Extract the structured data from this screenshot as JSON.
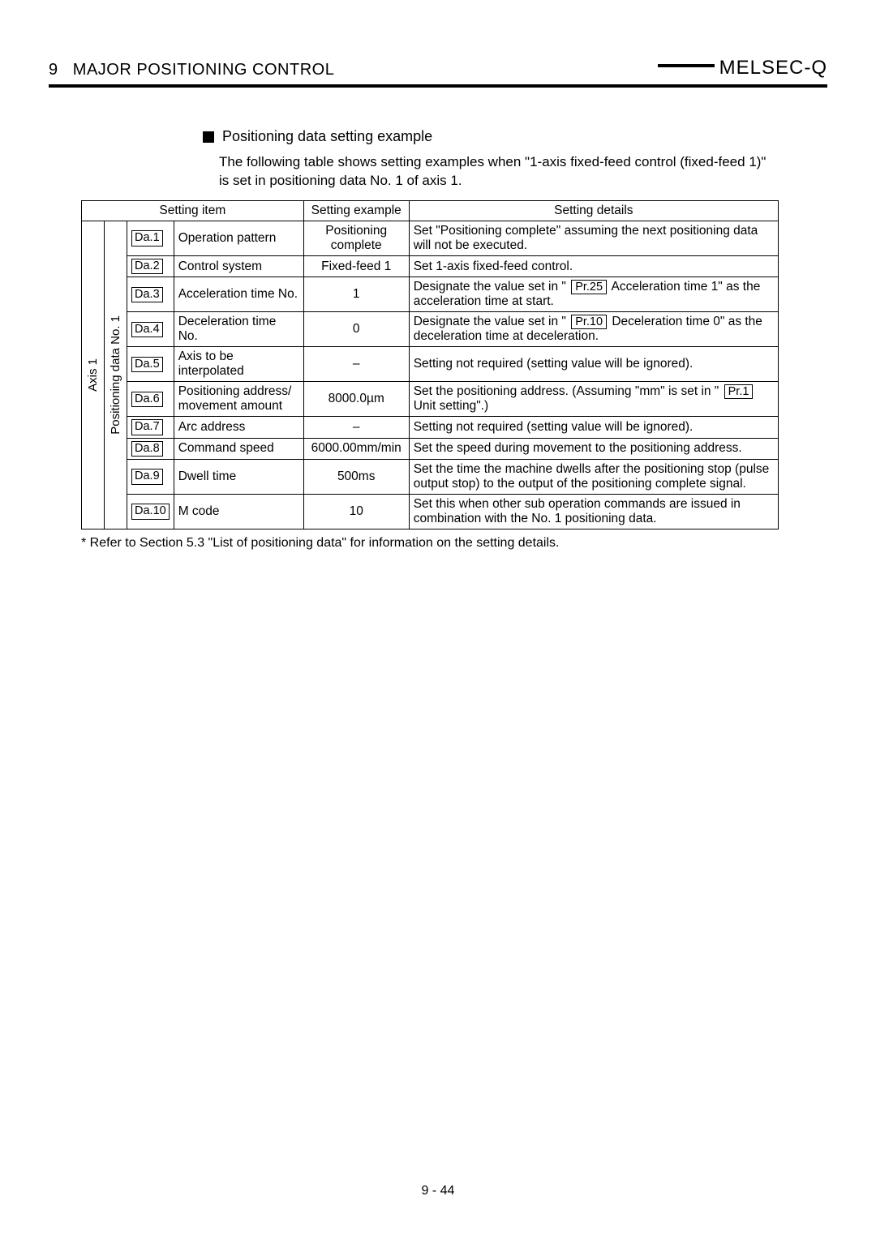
{
  "header": {
    "chapter": "9   MAJOR POSITIONING CONTROL",
    "brand": "MELSEC-Q"
  },
  "section": {
    "title": "Positioning data setting example",
    "intro": "The following table shows setting examples when \"1-axis fixed-feed control (fixed-feed 1)\" is set in positioning data No. 1 of axis 1."
  },
  "table": {
    "headers": {
      "setting_item": "Setting item",
      "setting_example": "Setting example",
      "setting_details": "Setting details"
    },
    "vert1": "Axis 1",
    "vert2": "Positioning data No. 1",
    "rows": [
      {
        "da": "Da.1",
        "item": "Operation pattern",
        "example": "Positioning complete",
        "details_plain": "Set \"Positioning complete\" assuming the next positioning data will not be executed."
      },
      {
        "da": "Da.2",
        "item": "Control system",
        "example": "Fixed-feed 1",
        "details_plain": "Set 1-axis fixed-feed control."
      },
      {
        "da": "Da.3",
        "item": "Acceleration time No.",
        "example": "1",
        "details_pre": "Designate the value set in \" ",
        "pr": "Pr.25",
        "details_post": " Acceleration time 1\" as the acceleration time at start."
      },
      {
        "da": "Da.4",
        "item": "Deceleration time No.",
        "example": "0",
        "details_pre": "Designate the value set in \" ",
        "pr": "Pr.10",
        "details_post": " Deceleration time 0\" as the deceleration time at deceleration."
      },
      {
        "da": "Da.5",
        "item": "Axis to be interpolated",
        "example": "–",
        "details_plain": "Setting not required (setting value will be ignored)."
      },
      {
        "da": "Da.6",
        "item": "Positioning address/ movement amount",
        "example": "8000.0µm",
        "details_pre": "Set the positioning address. (Assuming \"mm\" is set in \" ",
        "pr": "Pr.1",
        "details_post": " Unit setting\".)"
      },
      {
        "da": "Da.7",
        "item": "Arc address",
        "example": "–",
        "details_plain": "Setting not required (setting value will be ignored)."
      },
      {
        "da": "Da.8",
        "item": "Command speed",
        "example": "6000.00mm/min",
        "details_plain": "Set the speed during movement to the positioning address."
      },
      {
        "da": "Da.9",
        "item": "Dwell time",
        "example": "500ms",
        "details_plain": "Set the time the machine dwells after the positioning stop (pulse output stop) to the output of the positioning complete signal."
      },
      {
        "da": "Da.10",
        "item": "M code",
        "example": "10",
        "details_plain": "Set this when other sub operation commands are issued in combination with the No. 1 positioning data."
      }
    ]
  },
  "footnote": "* Refer to Section 5.3 \"List of positioning data\" for information on the setting details.",
  "page": "9 - 44"
}
